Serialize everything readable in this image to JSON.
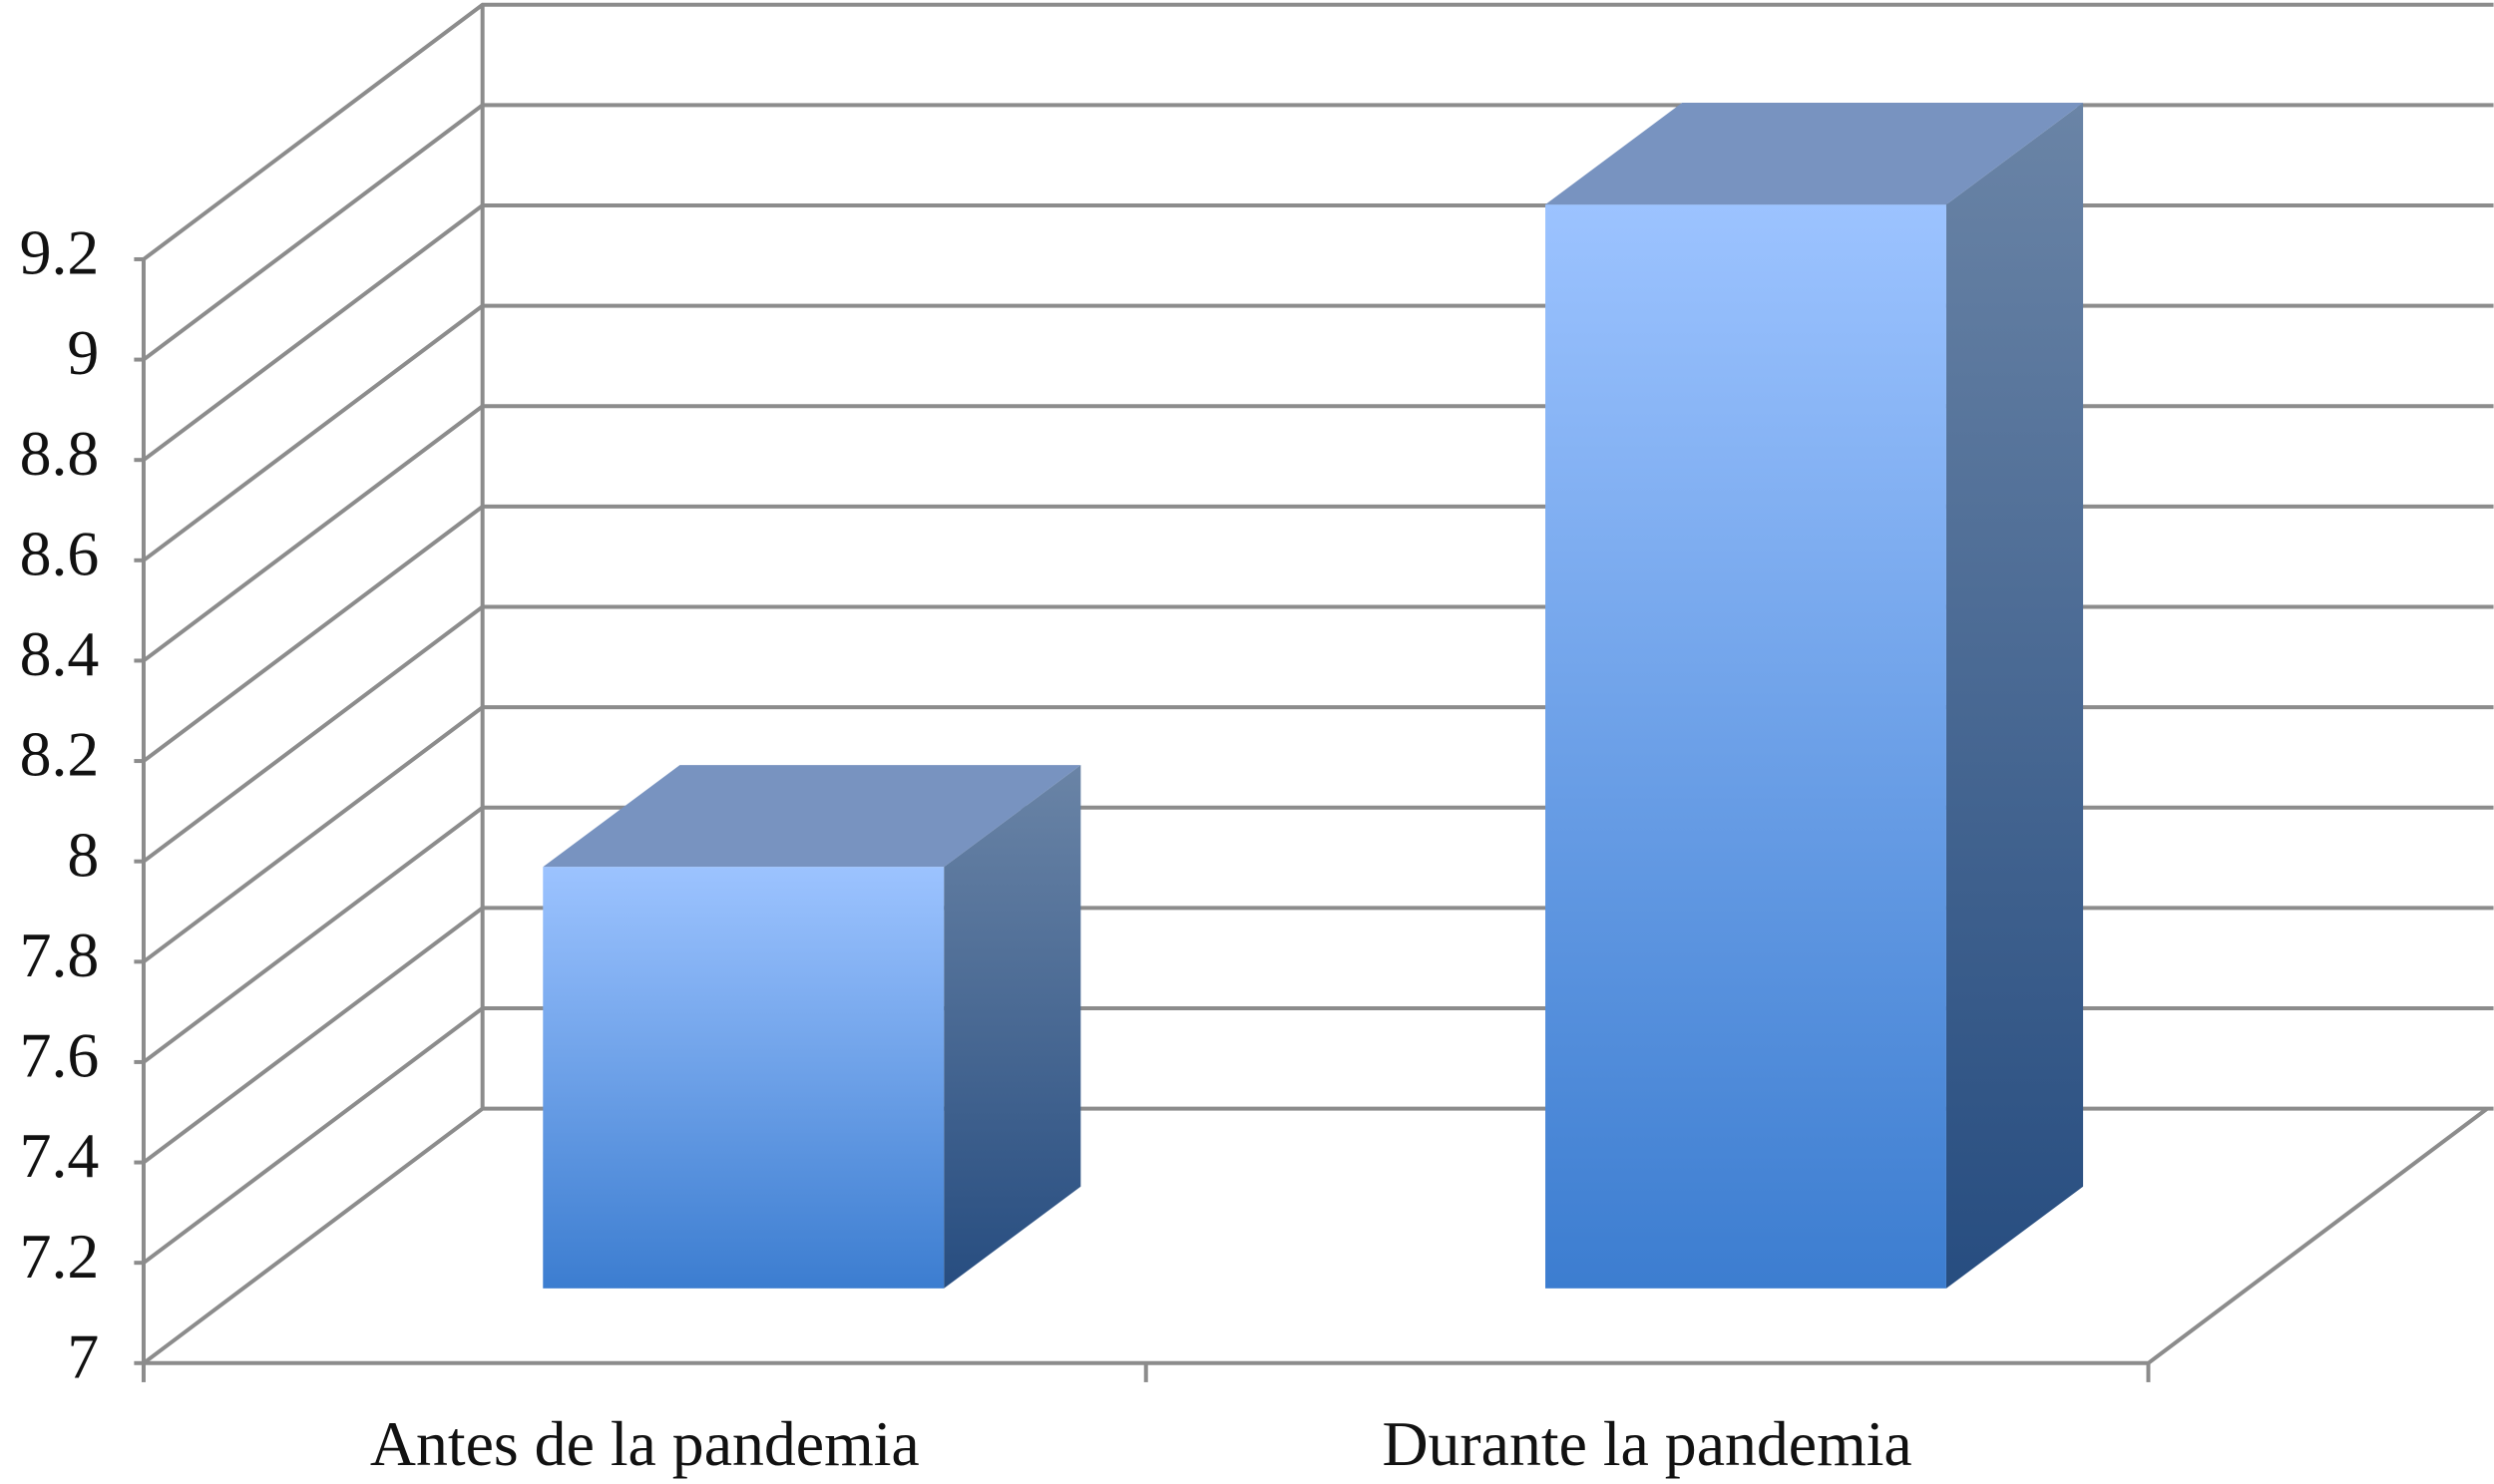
{
  "chart_data": {
    "type": "bar3d",
    "categories": [
      "Antes de la pandemia",
      "Durante la pandemia"
    ],
    "values": [
      7.84,
      9.16
    ],
    "colors": {
      "front_top": "#9cc3ff",
      "front_bottom": "#3c7dd0",
      "side_top": "#6a84a6",
      "side_bottom": "#274d80",
      "top": "#7893c0"
    },
    "ylim": [
      7,
      9.2
    ],
    "yticks": [
      7,
      7.2,
      7.4,
      7.6,
      7.8,
      8,
      8.2,
      8.4,
      8.6,
      8.8,
      9,
      9.2
    ],
    "grid": true
  }
}
